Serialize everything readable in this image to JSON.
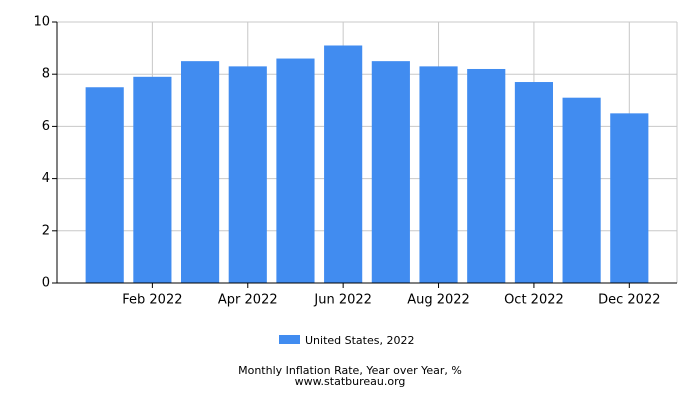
{
  "chart_data": {
    "type": "bar",
    "categories": [
      null,
      "Feb 2022",
      null,
      "Apr 2022",
      null,
      "Jun 2022",
      null,
      "Aug 2022",
      null,
      "Oct 2022",
      null,
      "Dec 2022"
    ],
    "series": [
      {
        "name": "United States, 2022",
        "color": "#418cf0",
        "values": [
          7.5,
          7.9,
          8.5,
          8.3,
          8.6,
          9.1,
          8.5,
          8.3,
          8.2,
          7.7,
          7.1,
          6.5
        ]
      }
    ],
    "ylim": [
      0,
      10
    ],
    "yticks": [
      0,
      2,
      4,
      6,
      8,
      10
    ],
    "grid": true,
    "title": "Monthly Inflation Rate, Year over Year, %",
    "source": "www.statbureau.org"
  }
}
